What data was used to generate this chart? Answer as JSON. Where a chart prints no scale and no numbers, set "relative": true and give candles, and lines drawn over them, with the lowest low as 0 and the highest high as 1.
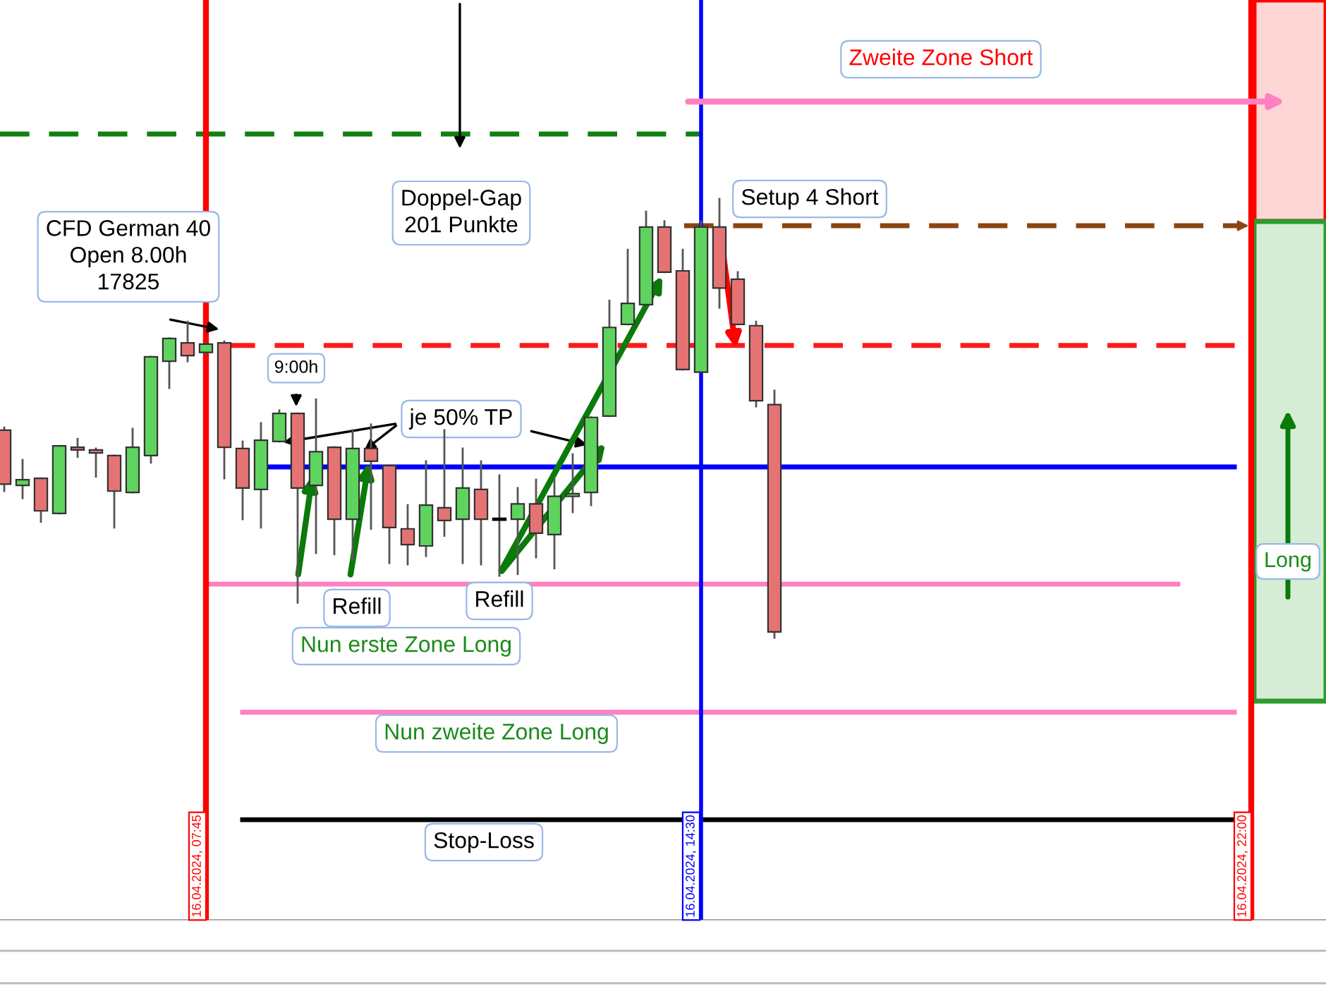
{
  "chart_data": {
    "type": "candlestick",
    "relative": true,
    "categories": [
      null,
      null,
      null,
      null,
      null,
      null,
      null,
      null,
      null,
      null,
      null,
      null,
      null,
      null,
      null,
      null,
      null,
      null,
      null,
      null,
      null,
      null,
      null,
      null,
      null,
      null,
      null,
      null,
      null,
      null,
      null,
      null,
      null,
      null,
      null,
      null,
      null,
      null,
      null,
      null,
      null,
      null,
      null
    ],
    "ohlc": [
      [
        0.473,
        0.479,
        0.334,
        0.35
      ],
      [
        0.347,
        0.405,
        0.318,
        0.36
      ],
      [
        0.363,
        0.363,
        0.264,
        0.289
      ],
      [
        0.283,
        0.437,
        0.283,
        0.437
      ],
      [
        0.434,
        0.453,
        0.412,
        0.428
      ],
      [
        0.428,
        0.431,
        0.367,
        0.421
      ],
      [
        0.415,
        0.415,
        0.251,
        0.334
      ],
      [
        0.331,
        0.476,
        0.331,
        0.434
      ],
      [
        0.415,
        0.64,
        0.399,
        0.64
      ],
      [
        0.63,
        0.682,
        0.569,
        0.682
      ],
      [
        0.672,
        0.72,
        0.63,
        0.643
      ],
      [
        0.65,
        0.672,
        0.646,
        0.669
      ],
      [
        0.672,
        0.675,
        0.363,
        0.434
      ],
      [
        0.431,
        0.447,
        0.27,
        0.341
      ],
      [
        0.338,
        0.489,
        0.251,
        0.45
      ],
      [
        0.447,
        0.518,
        0.447,
        0.511
      ],
      [
        0.511,
        0.511,
        0.08,
        0.341
      ],
      [
        0.347,
        0.543,
        0.193,
        0.424
      ],
      [
        0.434,
        0.434,
        0.19,
        0.27
      ],
      [
        0.27,
        0.473,
        0.177,
        0.431
      ],
      [
        0.431,
        0.486,
        0.248,
        0.402
      ],
      [
        0.392,
        0.392,
        0.17,
        0.251
      ],
      [
        0.248,
        0.302,
        0.167,
        0.212
      ],
      [
        0.209,
        0.402,
        0.186,
        0.302
      ],
      [
        0.296,
        0.473,
        0.232,
        0.267
      ],
      [
        0.27,
        0.431,
        0.17,
        0.341
      ],
      [
        0.338,
        0.402,
        0.167,
        0.27
      ],
      [
        0.27,
        0.37,
        0.141,
        0.27
      ],
      [
        0.27,
        0.341,
        0.145,
        0.305
      ],
      [
        0.305,
        0.36,
        0.183,
        0.238
      ],
      [
        0.235,
        0.36,
        0.158,
        0.322
      ],
      [
        0.322,
        0.418,
        0.286,
        0.328
      ],
      [
        0.331,
        0.502,
        0.302,
        0.502
      ],
      [
        0.505,
        0.768,
        0.505,
        0.707
      ],
      [
        0.714,
        0.884,
        0.714,
        0.762
      ],
      [
        0.759,
        0.971,
        0.759,
        0.936
      ],
      [
        0.936,
        0.949,
        0.833,
        0.833
      ],
      [
        0.836,
        0.884,
        0.611,
        0.611
      ],
      [
        0.605,
        0.949,
        0.605,
        0.936
      ],
      [
        0.936,
        1.0,
        0.752,
        0.797
      ],
      [
        0.817,
        0.833,
        0.714,
        0.714
      ],
      [
        0.711,
        0.72,
        0.527,
        0.54
      ],
      [
        0.531,
        0.563,
        0.0,
        0.013
      ]
    ],
    "colors": [
      "#e57373",
      "#5ed35e",
      "#e57373",
      "#5ed35e",
      "#e57373",
      "#e57373",
      "#e57373",
      "#5ed35e",
      "#5ed35e",
      "#5ed35e",
      "#e57373",
      "#5ed35e",
      "#e57373",
      "#e57373",
      "#5ed35e",
      "#5ed35e",
      "#e57373",
      "#5ed35e",
      "#e57373",
      "#5ed35e",
      "#e57373",
      "#e57373",
      "#e57373",
      "#5ed35e",
      "#e57373",
      "#5ed35e",
      "#e57373",
      "#000000",
      "#5ed35e",
      "#e57373",
      "#5ed35e",
      "#5ed35e",
      "#5ed35e",
      "#5ed35e",
      "#5ed35e",
      "#5ed35e",
      "#e57373",
      "#e57373",
      "#5ed35e",
      "#e57373",
      "#e57373",
      "#e57373",
      "#e57373"
    ],
    "ref_lines": [
      {
        "axis": "y",
        "value": 1.148,
        "color": "#108010",
        "line_style": "dashed"
      },
      {
        "axis": "y",
        "value": 0.939,
        "color": "#8b4513",
        "line_style": "dashed"
      },
      {
        "axis": "y",
        "value": 0.666,
        "color": "#ff1a1a",
        "line_style": "dashed"
      },
      {
        "axis": "y",
        "value": 0.389,
        "color": "#0000ff",
        "line_style": "solid"
      },
      {
        "axis": "y",
        "value": 0.122,
        "color": "#ff80c0",
        "line_style": "solid"
      },
      {
        "axis": "y",
        "value": -0.17,
        "color": "#ff80c0",
        "line_style": "solid"
      },
      {
        "axis": "y",
        "value": -0.415,
        "color": "#000000",
        "line_style": "solid"
      }
    ],
    "annotations": [
      "CFD German 40\nOpen 8.00h\n17825",
      "9:00h",
      "je 50% TP",
      "Refill",
      "Refill",
      "Nun erste Zone Long",
      "Nun zweite Zone Long",
      "Stop-Loss",
      "Doppel-Gap\n201 Punkte",
      "Setup 4 Short",
      "Zweite Zone Short",
      "16.04.2024, 07:45",
      "16.04.2024, 14:30",
      "16.04.2024, 22:00",
      "Long"
    ]
  }
}
